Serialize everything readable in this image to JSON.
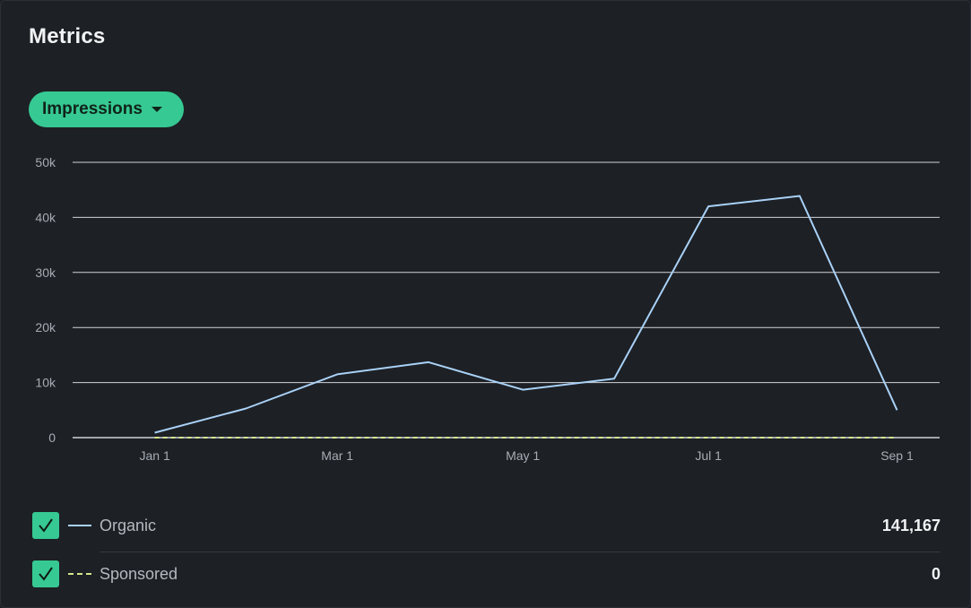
{
  "header": {
    "title": "Metrics"
  },
  "metric_selector": {
    "label": "Impressions"
  },
  "legend": {
    "items": [
      {
        "label": "Organic",
        "total": "141,167",
        "checked": true,
        "color": "#a9d1f7",
        "line_style": "solid"
      },
      {
        "label": "Sponsored",
        "total": "0",
        "checked": true,
        "color": "#d6e58a",
        "line_style": "dashed"
      }
    ]
  },
  "colors": {
    "accent": "#36c993",
    "background": "#1d2025",
    "grid": "#d0d4d9"
  },
  "chart_data": {
    "type": "line",
    "y_ticks": [
      0,
      10000,
      20000,
      30000,
      40000,
      50000
    ],
    "y_tick_labels": [
      "0",
      "10k",
      "20k",
      "30k",
      "40k",
      "50k"
    ],
    "ylim": [
      0,
      50000
    ],
    "x_ticks": [
      "2024-01-01",
      "2024-03-01",
      "2024-05-01",
      "2024-07-01",
      "2024-09-01"
    ],
    "x_tick_labels": [
      "Jan 1",
      "Mar 1",
      "May 1",
      "Jul 1",
      "Sep 1"
    ],
    "xlim": [
      "2023-12-05",
      "2024-09-15"
    ],
    "grid": true,
    "series": [
      {
        "name": "Organic",
        "x": [
          "2024-01-01",
          "2024-01-31",
          "2024-03-01",
          "2024-03-31",
          "2024-05-01",
          "2024-05-31",
          "2024-07-01",
          "2024-07-31",
          "2024-09-01"
        ],
        "values": [
          900,
          5300,
          11500,
          13700,
          8700,
          10700,
          42000,
          43900,
          5000
        ]
      },
      {
        "name": "Sponsored",
        "x": [
          "2024-01-01",
          "2024-01-31",
          "2024-03-01",
          "2024-03-31",
          "2024-05-01",
          "2024-05-31",
          "2024-07-01",
          "2024-07-31",
          "2024-09-01"
        ],
        "values": [
          0,
          0,
          0,
          0,
          0,
          0,
          0,
          0,
          0
        ]
      }
    ]
  }
}
